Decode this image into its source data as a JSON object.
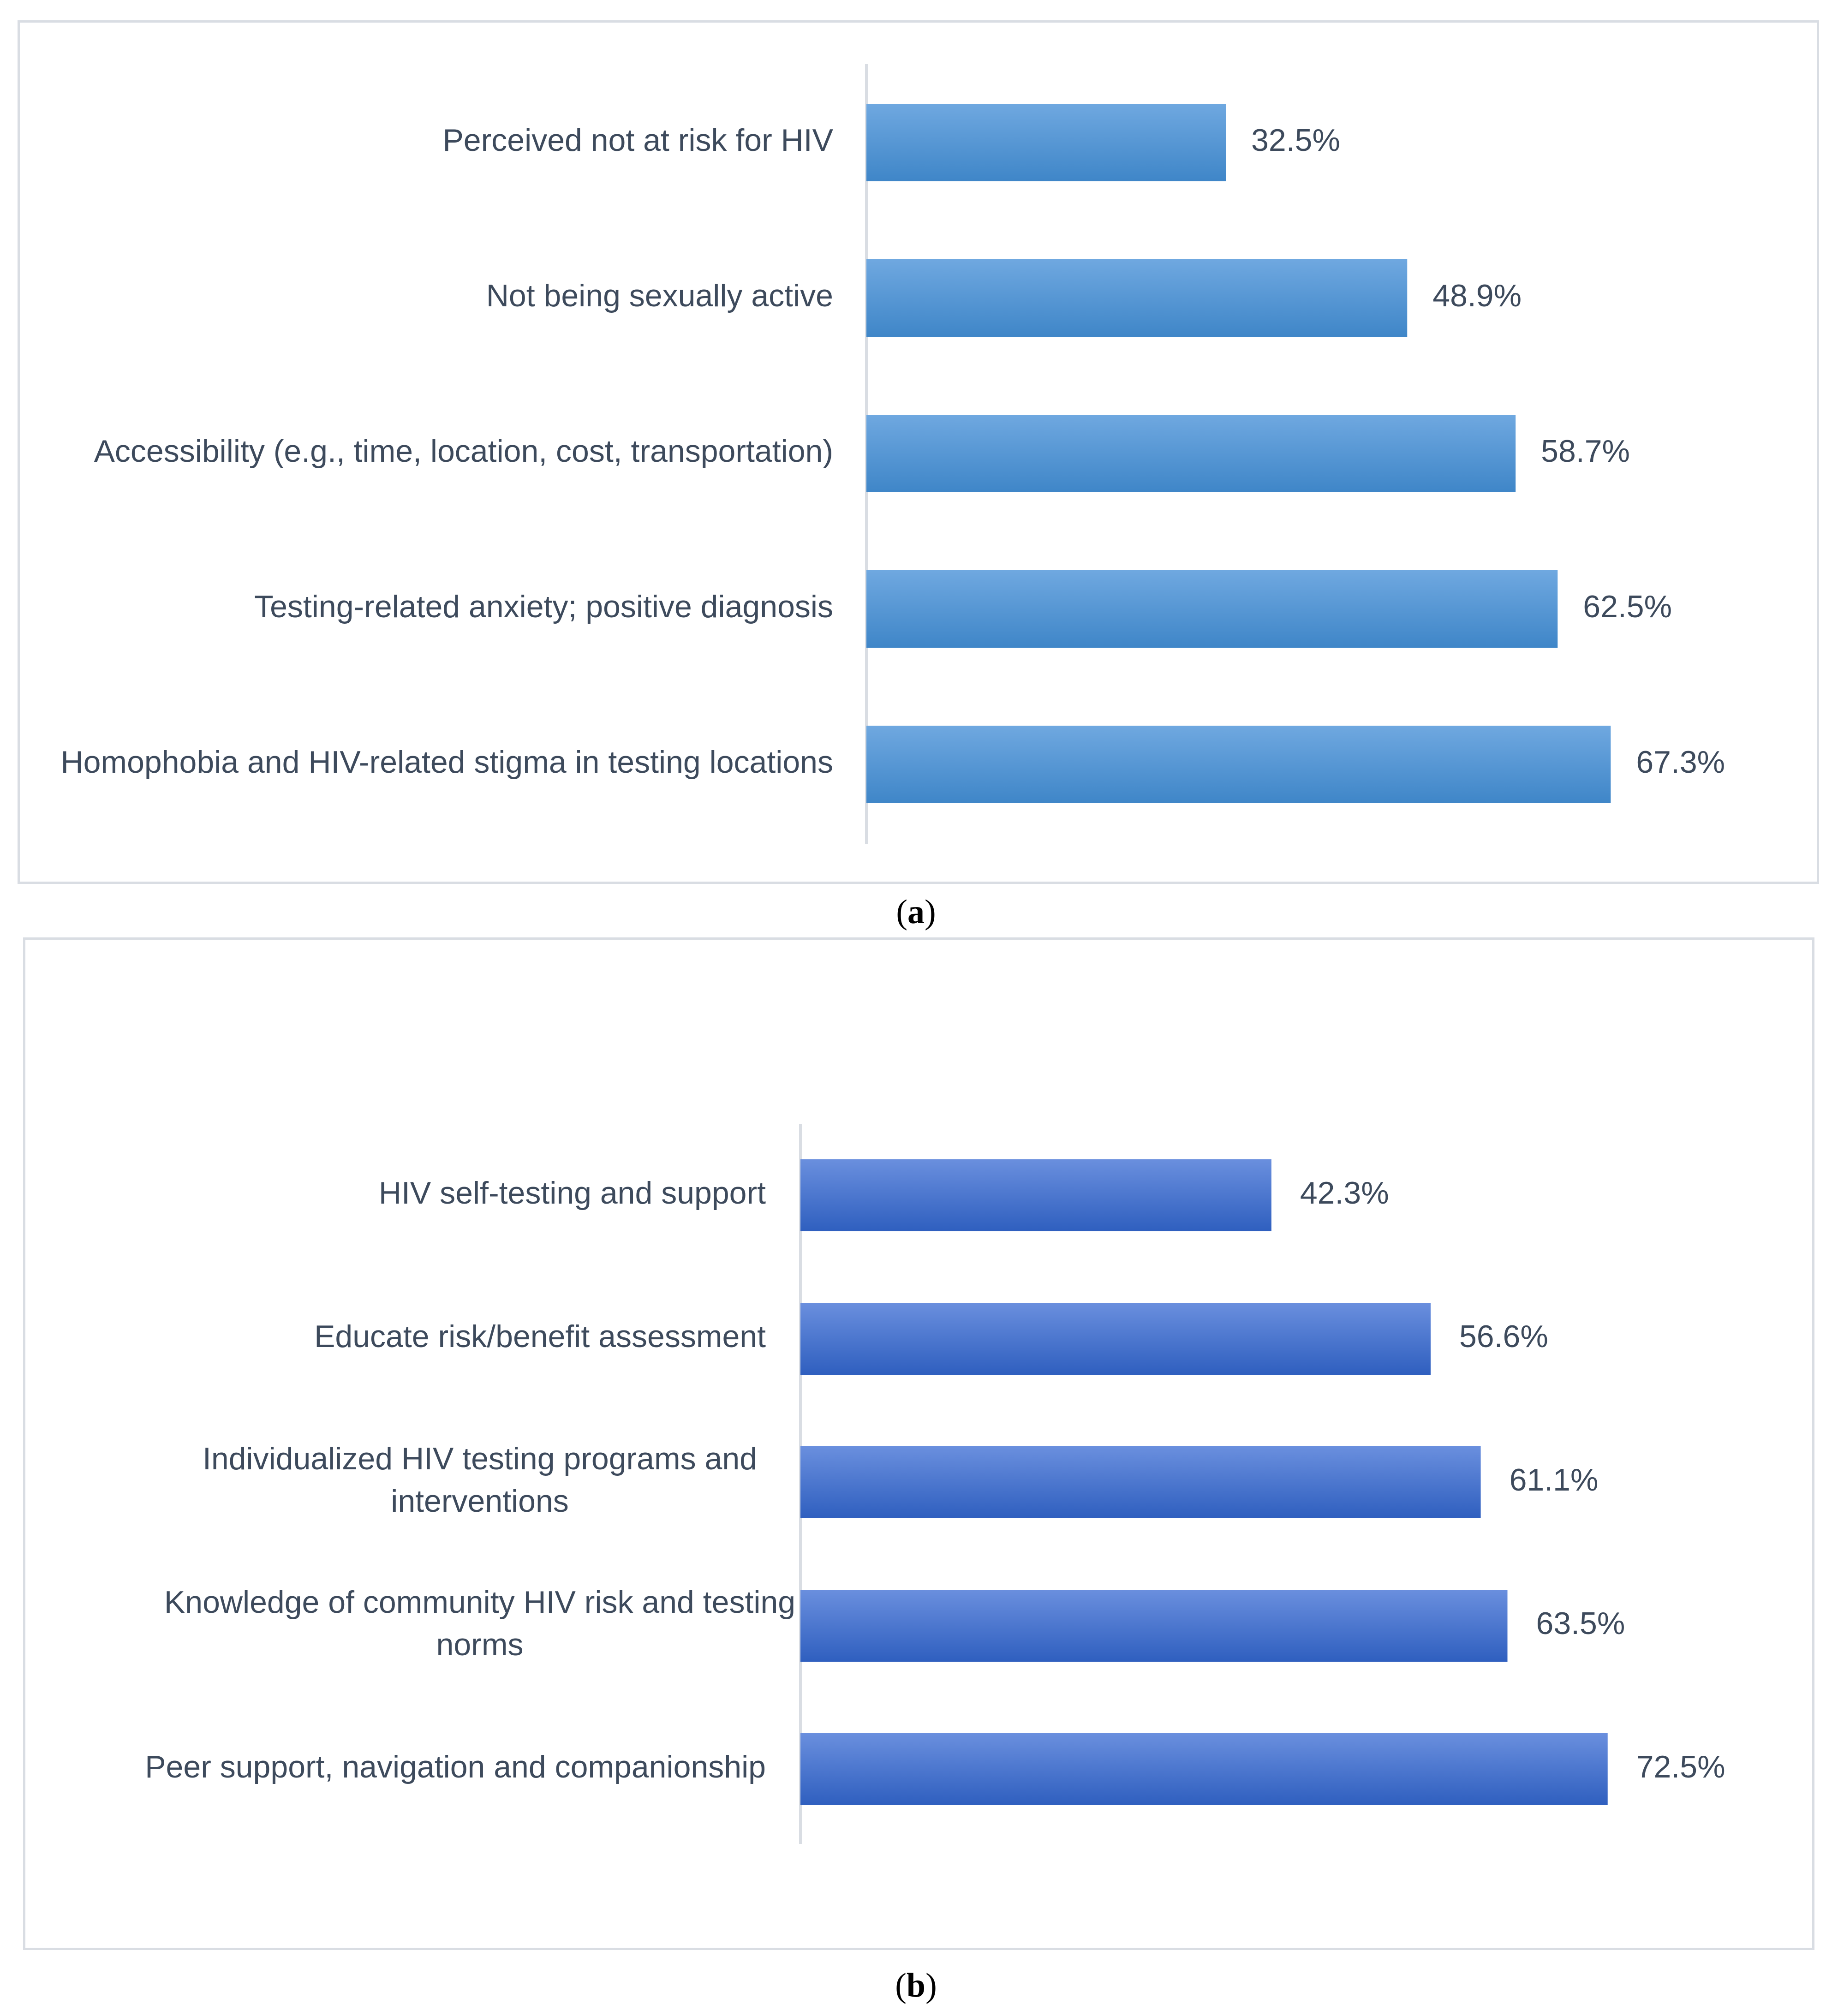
{
  "chart_data": [
    {
      "type": "bar",
      "orientation": "horizontal",
      "panel": "a",
      "categories": [
        "Perceived not at risk for HIV",
        "Not being sexually active",
        "Accessibility (e.g., time, location, cost, transportation)",
        "Testing-related anxiety; positive diagnosis",
        "Homophobia and HIV-related stigma in testing locations"
      ],
      "values": [
        32.5,
        48.9,
        58.7,
        62.5,
        67.3
      ],
      "value_labels": [
        "32.5%",
        "48.9%",
        "58.7%",
        "62.5%",
        "67.3%"
      ],
      "colors": {
        "bar_top": "#6fa8e0",
        "bar_bottom": "#3f86c8"
      },
      "xlim": [
        0,
        72.5
      ],
      "grid": false,
      "legend": "none"
    },
    {
      "type": "bar",
      "orientation": "horizontal",
      "panel": "b",
      "categories": [
        "HIV self-testing and support",
        "Educate risk/benefit assessment",
        "Individualized HIV testing programs and interventions",
        "Knowledge of community HIV risk and testing norms",
        "Peer support, navigation and companionship"
      ],
      "category_lines": [
        [
          "HIV self-testing and support"
        ],
        [
          "Educate risk/benefit assessment"
        ],
        [
          "Individualized HIV testing programs and",
          "interventions"
        ],
        [
          "Knowledge of community HIV risk and testing",
          "norms"
        ],
        [
          "Peer support, navigation and companionship"
        ]
      ],
      "values": [
        42.3,
        56.6,
        61.1,
        63.5,
        72.5
      ],
      "value_labels": [
        "42.3%",
        "56.6%",
        "61.1%",
        "63.5%",
        "72.5%"
      ],
      "colors": {
        "bar_top": "#6a8fde",
        "bar_bottom": "#2f5fbf"
      },
      "xlim": [
        0,
        82
      ],
      "grid": false,
      "legend": "none"
    }
  ],
  "captions": {
    "a": {
      "open": "(",
      "letter": "a",
      "close": ")"
    },
    "b": {
      "open": "(",
      "letter": "b",
      "close": ")"
    }
  }
}
